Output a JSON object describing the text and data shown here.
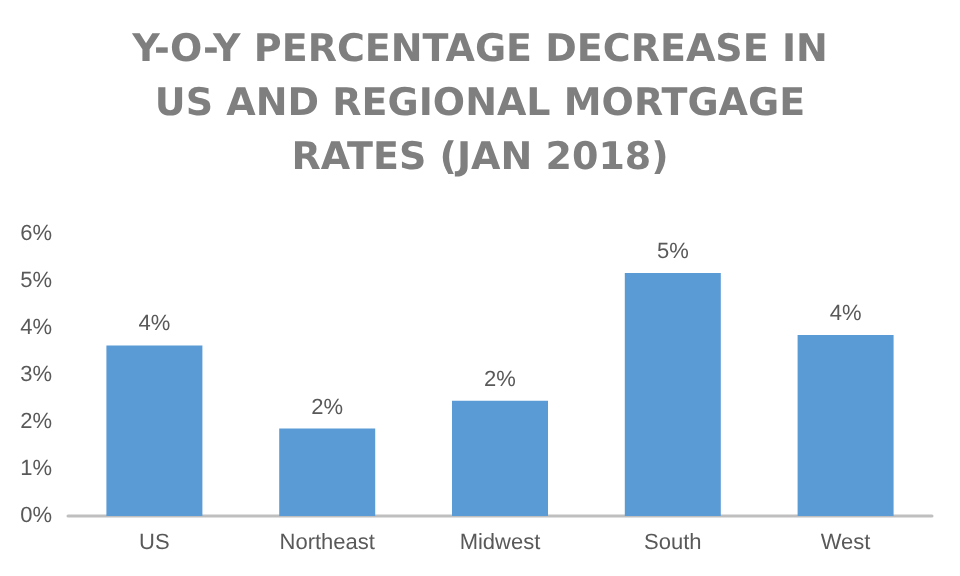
{
  "chart_data": {
    "type": "bar",
    "title": "Y-O-Y PERCENTAGE DECREASE IN US AND REGIONAL MORTGAGE RATES (JAN 2018)",
    "categories": [
      "US",
      "Northeast",
      "Midwest",
      "South",
      "West"
    ],
    "values": [
      3.63,
      1.86,
      2.45,
      5.17,
      3.85
    ],
    "value_labels": [
      "4%",
      "2%",
      "2%",
      "5%",
      "4%"
    ],
    "color": "#5b9bd5",
    "ylim": [
      0,
      6
    ],
    "yticks": [
      {
        "value": 0,
        "label": "0%"
      },
      {
        "value": 1,
        "label": "1%"
      },
      {
        "value": 2,
        "label": "2%"
      },
      {
        "value": 3,
        "label": "3%"
      },
      {
        "value": 4,
        "label": "4%"
      },
      {
        "value": 5,
        "label": "5%"
      },
      {
        "value": 6,
        "label": "6%"
      }
    ],
    "grid": false
  }
}
